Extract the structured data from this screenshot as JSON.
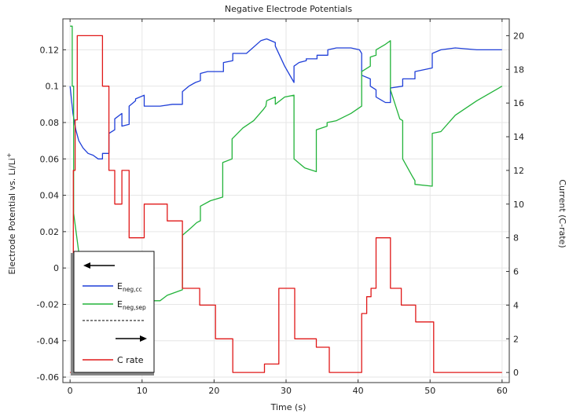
{
  "chart_data": {
    "type": "line",
    "title": "Negative Electrode Potentials",
    "xlabel": "Time (s)",
    "ylabel": "Electrode Potential vs. Li/Li",
    "ylabel_sup": "+",
    "y2label": "Current (C-rate)",
    "xlim": [
      -1,
      61
    ],
    "ylim": [
      -0.063,
      0.137
    ],
    "y2lim": [
      -0.6,
      21.0
    ],
    "x_ticks": [
      0,
      10,
      20,
      30,
      40,
      50,
      60
    ],
    "y_ticks": [
      -0.06,
      -0.04,
      -0.02,
      0,
      0.02,
      0.04,
      0.06,
      0.08,
      0.1,
      0.12
    ],
    "y_tick_labels": [
      "-0.06",
      "-0.04",
      "-0.02",
      "0",
      "0.02",
      "0.04",
      "0.06",
      "0.08",
      "0.1",
      "0.12"
    ],
    "y2_ticks": [
      0,
      2,
      4,
      6,
      8,
      10,
      12,
      14,
      16,
      18,
      20
    ],
    "grid": true,
    "legend_position": "lower-left",
    "series": [
      {
        "name": "E",
        "sub": "neg,cc",
        "axis": "left",
        "color": "#1f3fd8",
        "x": [
          0,
          0.4,
          0.8,
          1.2,
          1.8,
          2.5,
          3.2,
          3.9,
          4.5,
          4.5,
          5.4,
          5.4,
          6.2,
          6.2,
          7.2,
          7.2,
          8.2,
          8.2,
          9.1,
          9.1,
          10.3,
          10.3,
          12.5,
          14.2,
          15.6,
          15.6,
          16.5,
          17.4,
          18.1,
          18.1,
          19.1,
          20.4,
          21.3,
          21.3,
          22.6,
          22.6,
          24.5,
          26.5,
          27.3,
          28.5,
          28.5,
          29.8,
          31.1,
          31.1,
          31.8,
          32.8,
          32.8,
          34.3,
          34.3,
          35.8,
          35.8,
          37.0,
          39.0,
          40.2,
          40.5,
          40.5,
          41.7,
          41.7,
          42.5,
          42.5,
          43.8,
          44.5,
          44.5,
          46.2,
          46.2,
          47.9,
          47.9,
          50.3,
          50.3,
          51.5,
          53.5,
          56.5,
          60.0
        ],
        "y": [
          0.1,
          0.085,
          0.076,
          0.07,
          0.066,
          0.063,
          0.062,
          0.06,
          0.06,
          0.063,
          0.063,
          0.074,
          0.076,
          0.082,
          0.085,
          0.078,
          0.079,
          0.089,
          0.092,
          0.093,
          0.095,
          0.089,
          0.089,
          0.09,
          0.09,
          0.097,
          0.1,
          0.102,
          0.103,
          0.107,
          0.108,
          0.108,
          0.108,
          0.113,
          0.114,
          0.118,
          0.118,
          0.125,
          0.126,
          0.124,
          0.122,
          0.111,
          0.102,
          0.111,
          0.113,
          0.114,
          0.115,
          0.115,
          0.117,
          0.117,
          0.12,
          0.121,
          0.121,
          0.12,
          0.118,
          0.106,
          0.104,
          0.1,
          0.098,
          0.094,
          0.091,
          0.091,
          0.099,
          0.1,
          0.104,
          0.104,
          0.108,
          0.11,
          0.118,
          0.12,
          0.121,
          0.12,
          0.12
        ]
      },
      {
        "name": "E",
        "sub": "neg,sep",
        "axis": "left",
        "color": "#22b33a",
        "x": [
          0,
          0.3,
          0.3,
          0.5,
          0.5,
          1.5,
          3.0,
          4.5,
          5.4,
          7.0,
          9.0,
          11.0,
          12.5,
          13.5,
          15.6,
          15.6,
          16.5,
          17.6,
          18.1,
          18.1,
          19.5,
          21.2,
          21.2,
          22.5,
          22.5,
          24.0,
          25.5,
          26.8,
          27.2,
          27.3,
          28.5,
          28.5,
          29.8,
          31.1,
          31.1,
          32.6,
          34.2,
          34.2,
          35.7,
          35.7,
          37.0,
          39.0,
          40.5,
          40.5,
          41.7,
          41.7,
          42.5,
          42.5,
          43.8,
          44.5,
          44.5,
          45.8,
          46.2,
          46.2,
          47.6,
          47.9,
          47.9,
          50.3,
          50.3,
          51.5,
          53.5,
          56.5,
          60.0
        ],
        "y": [
          0.133,
          0.133,
          0.1,
          0.1,
          0.03,
          0.0,
          -0.008,
          -0.01,
          -0.012,
          -0.013,
          -0.015,
          -0.018,
          -0.018,
          -0.015,
          -0.012,
          0.018,
          0.021,
          0.025,
          0.026,
          0.034,
          0.037,
          0.039,
          0.058,
          0.06,
          0.071,
          0.077,
          0.081,
          0.087,
          0.089,
          0.092,
          0.094,
          0.09,
          0.094,
          0.095,
          0.06,
          0.055,
          0.053,
          0.076,
          0.078,
          0.08,
          0.081,
          0.085,
          0.089,
          0.108,
          0.111,
          0.116,
          0.117,
          0.12,
          0.123,
          0.125,
          0.098,
          0.082,
          0.081,
          0.06,
          0.05,
          0.048,
          0.046,
          0.045,
          0.074,
          0.075,
          0.084,
          0.092,
          0.1
        ]
      },
      {
        "name": "C rate",
        "axis": "right",
        "color": "#e01818",
        "x": [
          0,
          0.45,
          0.45,
          0.7,
          0.7,
          1.0,
          1.0,
          4.5,
          4.5,
          5.4,
          5.4,
          6.2,
          6.2,
          7.2,
          7.2,
          8.2,
          8.2,
          10.3,
          10.3,
          13.5,
          13.5,
          15.6,
          15.6,
          18.0,
          18.0,
          20.2,
          20.2,
          22.6,
          22.6,
          27.0,
          27.0,
          29.0,
          29.0,
          31.2,
          31.2,
          34.2,
          34.2,
          36.0,
          36.0,
          40.5,
          40.5,
          41.2,
          41.2,
          41.8,
          41.8,
          42.5,
          42.5,
          44.5,
          44.5,
          46.0,
          46.0,
          48.0,
          48.0,
          50.5,
          50.5,
          60.0
        ],
        "y": [
          0,
          0,
          12.0,
          12.0,
          15.0,
          15.0,
          20.0,
          20.0,
          17.0,
          17.0,
          12.0,
          12.0,
          10.0,
          10.0,
          12.0,
          12.0,
          8.0,
          8.0,
          10.0,
          10.0,
          9.0,
          9.0,
          5.0,
          5.0,
          4.0,
          4.0,
          2.0,
          2.0,
          0.0,
          0.0,
          0.5,
          0.5,
          5.0,
          5.0,
          2.0,
          2.0,
          1.5,
          1.5,
          0.0,
          0.0,
          3.5,
          3.5,
          4.5,
          4.5,
          5.0,
          5.0,
          8.0,
          8.0,
          5.0,
          5.0,
          4.0,
          4.0,
          3.0,
          3.0,
          0.0,
          0.0
        ]
      }
    ],
    "legend_arrows": {
      "left_arrow": "←",
      "right_arrow": "→"
    }
  }
}
